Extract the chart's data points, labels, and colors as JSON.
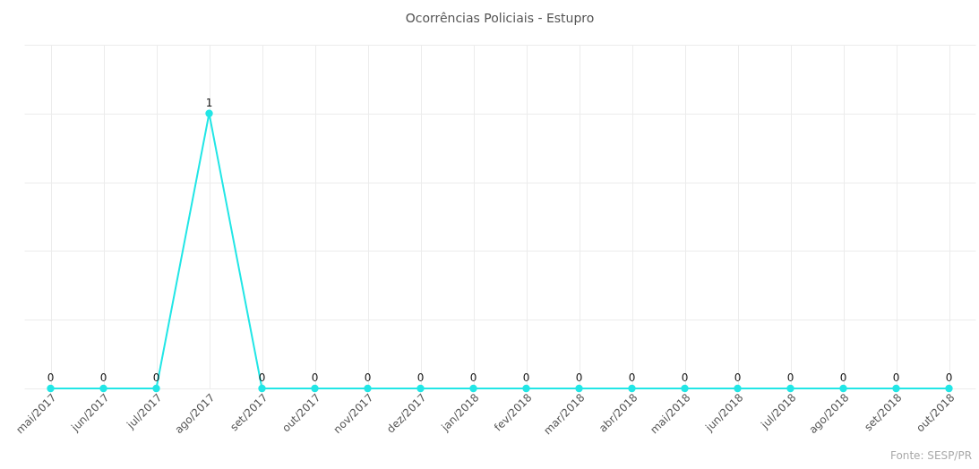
{
  "chart_data": {
    "type": "line",
    "title": "Ocorrências Policiais - Estupro",
    "categories": [
      "mai/2017",
      "jun/2017",
      "jul/2017",
      "ago/2017",
      "set/2017",
      "out/2017",
      "nov/2017",
      "dez/2017",
      "jan/2018",
      "fev/2018",
      "mar/2018",
      "abr/2018",
      "mai/2018",
      "jun/2018",
      "jul/2018",
      "ago/2018",
      "set/2018",
      "out/2018"
    ],
    "series": [
      {
        "color": "#22e6e6",
        "values": [
          0,
          0,
          0,
          1,
          0,
          0,
          0,
          0,
          0,
          0,
          0,
          0,
          0,
          0,
          0,
          0,
          0,
          0
        ]
      }
    ],
    "ylim": [
      0,
      1.25
    ],
    "yticks": [
      {
        "value": 0,
        "label": null
      },
      {
        "value": 0.25,
        "label": null
      },
      {
        "value": 0.5,
        "label": null
      },
      {
        "value": 0.75,
        "label": null
      },
      {
        "value": 1,
        "label": null
      },
      {
        "value": 1.25,
        "label": null
      }
    ],
    "tick_labels": "x",
    "grid": true,
    "marker": "circle",
    "data_labels": true,
    "annotations": [
      "Fonte: SESP/PR"
    ]
  }
}
